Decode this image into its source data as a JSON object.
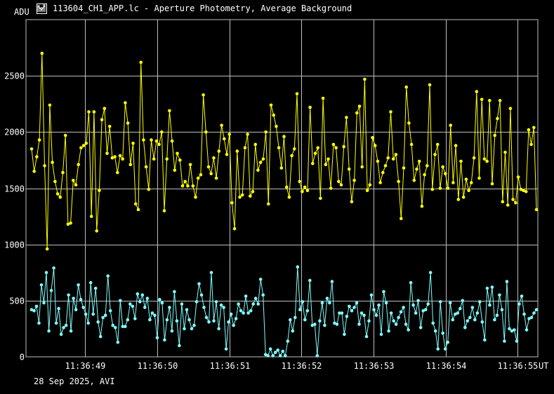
{
  "window": {
    "title": "113604_CH1_APP.lc - Aperture Photometry, Average Background"
  },
  "footer": {
    "text": "28 Sep 2025, AVI"
  },
  "colors": {
    "background": "#000000",
    "grid": "#bfbfbf",
    "series_1": "#ffff00",
    "series_2": "#80ffff",
    "text": "#ffffff"
  },
  "chart_data": {
    "type": "line",
    "ylabel": "ADU",
    "xunit": "UT",
    "ylim": [
      0,
      3000
    ],
    "yticks": [
      0,
      500,
      1000,
      1500,
      2000,
      2500
    ],
    "x_range_s": [
      48.18,
      55.28
    ],
    "xticks": [
      {
        "t": 49,
        "label": "11:36:49"
      },
      {
        "t": 50,
        "label": "11:36:50"
      },
      {
        "t": 51,
        "label": "11:36:51"
      },
      {
        "t": 52,
        "label": "11:36:52"
      },
      {
        "t": 53,
        "label": "11:36:53"
      },
      {
        "t": 54,
        "label": "11:36:54"
      },
      {
        "t": 55,
        "label": "11:36:55"
      }
    ],
    "grid": true,
    "series": [
      {
        "color": "#ffff00",
        "values": [
          1850,
          1650,
          1780,
          1930,
          2700,
          1700,
          960,
          2240,
          1730,
          1560,
          1450,
          1420,
          1640,
          1970,
          1180,
          1190,
          1570,
          1530,
          1710,
          1860,
          1880,
          1900,
          2180,
          1250,
          2180,
          1120,
          1480,
          2110,
          2210,
          1810,
          2050,
          1770,
          1780,
          1640,
          1790,
          1760,
          2260,
          2080,
          1710,
          1900,
          1360,
          1310,
          2620,
          1930,
          1690,
          1490,
          1930,
          1760,
          1920,
          1890,
          2000,
          1300,
          1760,
          2190,
          1920,
          1660,
          1810,
          1750,
          1520,
          1560,
          1520,
          1710,
          1520,
          1420,
          1590,
          1620,
          2330,
          2000,
          1690,
          1630,
          1770,
          1590,
          1830,
          2060,
          1940,
          1800,
          1980,
          1370,
          1140,
          1830,
          1420,
          1440,
          1860,
          1980,
          1430,
          1470,
          1890,
          1660,
          1730,
          1760,
          2000,
          1360,
          2240,
          2150,
          2050,
          1860,
          1680,
          1960,
          1510,
          1420,
          1790,
          1850,
          2340,
          1560,
          1470,
          1510,
          1480,
          2220,
          1720,
          1810,
          1860,
          1410,
          2300,
          1710,
          1760,
          1500,
          1890,
          1860,
          1560,
          1530,
          1870,
          2130,
          1670,
          1380,
          1570,
          2170,
          2230,
          1690,
          2470,
          1480,
          1530,
          1950,
          1880,
          1740,
          1550,
          1640,
          1700,
          1770,
          2180,
          1760,
          1800,
          1560,
          1230,
          1680,
          2400,
          2080,
          1890,
          1570,
          1670,
          1740,
          1340,
          1620,
          1700,
          2420,
          1490,
          1800,
          1890,
          1500,
          1690,
          1630,
          1500,
          2060,
          1550,
          1880,
          1400,
          1740,
          1420,
          1580,
          1480,
          1550,
          1770,
          2360,
          1590,
          2290,
          1760,
          1740,
          2280,
          1540,
          1970,
          2120,
          2280,
          1380,
          1820,
          1350,
          2210,
          1400,
          1370,
          1600,
          1490,
          1480,
          1470,
          2020,
          1890,
          2040,
          1310
        ]
      },
      {
        "color": "#80ffff",
        "values": [
          420,
          410,
          450,
          300,
          640,
          480,
          750,
          230,
          590,
          790,
          300,
          430,
          200,
          260,
          280,
          550,
          230,
          520,
          420,
          640,
          510,
          440,
          380,
          300,
          660,
          380,
          610,
          310,
          180,
          350,
          370,
          720,
          410,
          280,
          260,
          130,
          500,
          270,
          270,
          330,
          470,
          450,
          340,
          560,
          490,
          550,
          440,
          520,
          330,
          390,
          370,
          170,
          510,
          480,
          150,
          330,
          440,
          230,
          580,
          320,
          100,
          470,
          250,
          420,
          330,
          250,
          280,
          490,
          650,
          550,
          440,
          350,
          310,
          750,
          320,
          490,
          250,
          460,
          440,
          70,
          310,
          380,
          280,
          340,
          470,
          410,
          390,
          540,
          390,
          410,
          470,
          520,
          470,
          690,
          550,
          20,
          10,
          70,
          10,
          40,
          60,
          10,
          50,
          10,
          140,
          330,
          230,
          350,
          800,
          420,
          490,
          330,
          410,
          680,
          280,
          290,
          10,
          320,
          480,
          280,
          520,
          480,
          670,
          300,
          290,
          390,
          390,
          200,
          360,
          450,
          410,
          440,
          480,
          290,
          390,
          370,
          180,
          320,
          550,
          420,
          370,
          460,
          200,
          580,
          480,
          230,
          390,
          320,
          290,
          350,
          400,
          440,
          290,
          240,
          660,
          460,
          390,
          500,
          260,
          410,
          420,
          470,
          750,
          300,
          230,
          70,
          490,
          210,
          70,
          130,
          480,
          330,
          380,
          390,
          430,
          500,
          260,
          320,
          350,
          440,
          330,
          390,
          490,
          310,
          150,
          610,
          460,
          620,
          330,
          370,
          550,
          420,
          140,
          670,
          250,
          230,
          240,
          140,
          470,
          540,
          380,
          240,
          340,
          350,
          390,
          420
        ]
      }
    ]
  }
}
